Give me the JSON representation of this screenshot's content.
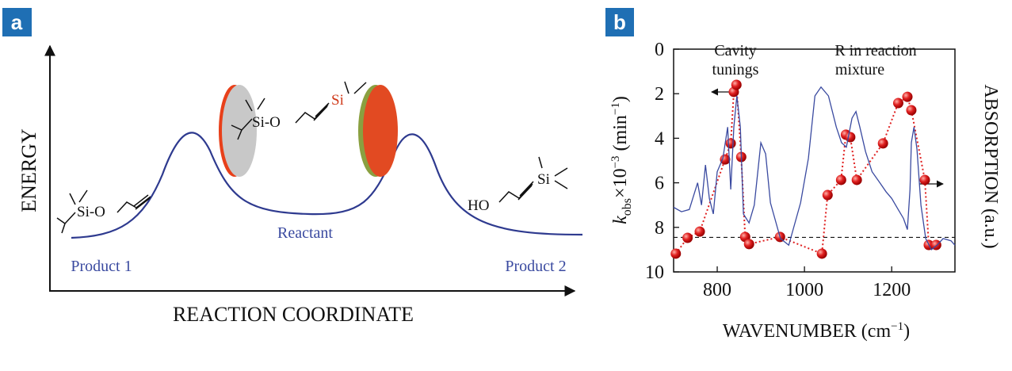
{
  "panel_a": {
    "label": "a",
    "y_label": "ENERGY",
    "x_label": "REACTION COORDINATE",
    "states": [
      "Product 1",
      "Reactant",
      "Product 2"
    ],
    "molecules": {
      "product1": "Si-O",
      "reactant_left": "Si-O",
      "reactant_right": "Si",
      "product2_left": "HO",
      "product2_right": "Si"
    }
  },
  "chart_data": {
    "type": "scatter",
    "label": "b",
    "x_label": [
      "WAVENUMBER (cm",
      "−1",
      ")"
    ],
    "y_label": [
      "k",
      "obs",
      "×10",
      "−3",
      " (min",
      "−1",
      ")"
    ],
    "y2_label": "ABSORPTION (a.u.)",
    "annotations": [
      [
        "Cavity",
        "tunings"
      ],
      [
        "R in reaction",
        "mixture"
      ]
    ],
    "xlim": [
      700,
      1345
    ],
    "xticks": [
      800,
      1000,
      1200
    ],
    "ylim": [
      0,
      10
    ],
    "y_inverted": true,
    "yticks": [
      0,
      2,
      4,
      6,
      8,
      10
    ],
    "y2lim": [
      0,
      1
    ],
    "y2ticks": [],
    "reference_line": 8.45,
    "series": [
      {
        "color": "#e02020",
        "line_style": "dotted",
        "marker": "circle",
        "x": [
          705,
          732,
          760,
          818,
          831,
          838,
          844,
          855,
          864,
          873,
          944,
          1040,
          1053,
          1084,
          1095,
          1105,
          1120,
          1180,
          1215,
          1236,
          1245,
          1276,
          1285,
          1302
        ],
        "values": [
          9.18,
          8.47,
          8.19,
          4.95,
          4.23,
          1.92,
          1.6,
          4.84,
          8.43,
          8.75,
          8.43,
          9.18,
          6.55,
          5.87,
          3.84,
          3.95,
          5.87,
          4.23,
          2.42,
          2.14,
          2.74,
          5.87,
          8.79,
          8.79
        ]
      },
      {
        "color": "#3a4aa0",
        "axis": "y2",
        "line_style": "solid",
        "x": [
          700,
          718,
          736,
          755,
          764,
          773,
          782,
          791,
          800,
          813,
          824,
          831,
          838,
          845,
          853,
          860,
          873,
          885,
          900,
          911,
          922,
          945,
          964,
          991,
          1009,
          1024,
          1038,
          1055,
          1073,
          1085,
          1096,
          1109,
          1118,
          1127,
          1140,
          1155,
          1173,
          1187,
          1200,
          1215,
          1227,
          1236,
          1242,
          1245,
          1251,
          1258,
          1267,
          1278,
          1291,
          1304,
          1318,
          1336,
          1345
        ],
        "values": [
          0.29,
          0.27,
          0.28,
          0.4,
          0.3,
          0.48,
          0.33,
          0.26,
          0.45,
          0.51,
          0.65,
          0.37,
          0.65,
          0.79,
          0.65,
          0.26,
          0.22,
          0.3,
          0.58,
          0.53,
          0.31,
          0.15,
          0.12,
          0.31,
          0.51,
          0.79,
          0.83,
          0.79,
          0.65,
          0.58,
          0.56,
          0.69,
          0.72,
          0.65,
          0.54,
          0.45,
          0.4,
          0.36,
          0.33,
          0.28,
          0.24,
          0.19,
          0.37,
          0.58,
          0.65,
          0.55,
          0.3,
          0.15,
          0.1,
          0.12,
          0.15,
          0.14,
          0.12
        ]
      }
    ]
  }
}
